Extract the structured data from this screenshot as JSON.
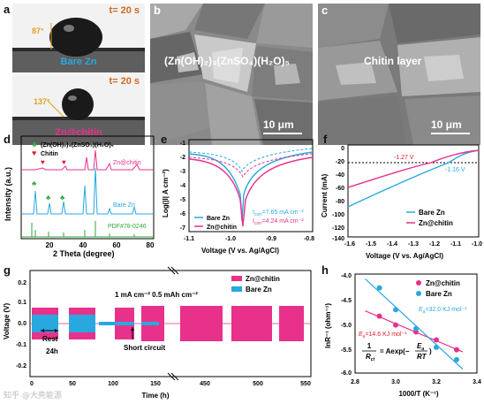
{
  "panels": {
    "a": {
      "label": "a",
      "top": {
        "time": "t= 20 s",
        "angle": "87°",
        "name": "Bare Zn"
      },
      "bottom": {
        "time": "t= 20 s",
        "angle": "137°",
        "name": "Zn@chitin"
      }
    },
    "b": {
      "label": "b",
      "overlay": "(Zn(OH)₂)₃(ZnSO₄)(H₂O)₅",
      "scale": "10 μm"
    },
    "c": {
      "label": "c",
      "overlay": "Chitin layer",
      "scale": "10 μm"
    },
    "d": {
      "label": "d",
      "legend_club": "(Zn(OH)₂)₃(ZnSO₄)(H₂O)₅",
      "legend_heart": "Chitin",
      "trace1": "Zn@chitin",
      "trace2": "Bare Zn",
      "trace3": "PDF#78-0246",
      "xlabel": "2 Theta (degree)",
      "ylabel": "Intensity (a.u.)",
      "xticks": [
        "20",
        "40",
        "60",
        "80"
      ]
    },
    "e": {
      "label": "e",
      "ylabel": "Log(|I| A cm⁻²)",
      "xlabel": "Voltage (V vs. Ag/AgCl)",
      "yticks": [
        "-1",
        "-2",
        "-3",
        "-4",
        "-5",
        "-6",
        "-7"
      ],
      "xticks": [
        "-1.1",
        "-1.0",
        "-0.9",
        "-0.8"
      ],
      "icorr1": "I",
      "icorr1_sub": "corr",
      "icorr1_val": "=7.65 mA cm⁻²",
      "icorr2": "I",
      "icorr2_sub": "corr",
      "icorr2_val": "=4.24 mA cm⁻²",
      "legend": [
        "Bare Zn",
        "Zn@chitin"
      ]
    },
    "f": {
      "label": "f",
      "ylabel": "Current (mA)",
      "xlabel": "Voltage (V vs. Ag/AgCl)",
      "yticks": [
        "0",
        "-20",
        "-40",
        "-60",
        "-80",
        "-100",
        "-120",
        "-140"
      ],
      "xticks": [
        "-1.6",
        "-1.5",
        "-1.4",
        "-1.3",
        "-1.2",
        "-1.1",
        "-1.0"
      ],
      "ann1": "-1.27 V",
      "ann2": "-1.16 V",
      "legend": [
        "Bare Zn",
        "Zn@chitin"
      ]
    },
    "g": {
      "label": "g",
      "ylabel": "Voltage (V)",
      "xlabel": "Time (h)",
      "yticks": [
        "0.2",
        "0.1",
        "0.0",
        "-0.1",
        "-0.2"
      ],
      "xticks": [
        "0",
        "50",
        "100",
        "150",
        "450",
        "500",
        "550"
      ],
      "cond": "1 mA cm⁻²  0.5 mAh cm⁻²",
      "rest1": "Rest",
      "rest2": "24h",
      "short": "Short circuit",
      "legend": [
        "Zn@chitin",
        "Bare Zn"
      ]
    },
    "h": {
      "label": "h",
      "ylabel": "lnR⁻¹ (ohm⁻¹)",
      "xlabel": "1000/T (K⁻¹)",
      "yticks": [
        "-4.0",
        "-4.5",
        "-5.0",
        "-5.5",
        "-6.0"
      ],
      "xticks": [
        "2.8",
        "3.0",
        "3.2",
        "3.4"
      ],
      "ea_bare": "E",
      "ea_bare_sub": "a",
      "ea_bare_val": "=32.0 KJ mol⁻¹",
      "ea_chitin": "E",
      "ea_chitin_sub": "a",
      "ea_chitin_val": "=14.6 KJ mol⁻¹",
      "eq_left": "1",
      "eq_den": "R",
      "eq_den_sub": "ct",
      "eq_right": "= Aexp(−",
      "eq_num2": "E",
      "eq_num2_sub": "a",
      "eq_den2": "RT",
      "eq_close": ")",
      "legend": [
        "Zn@chitin",
        "Bare Zn"
      ]
    }
  },
  "watermark": "知乎 @大壳能源",
  "colors": {
    "blue": "#29a8e0",
    "pink": "#e8318a",
    "green": "#2ea83a",
    "red": "#e0192c"
  },
  "chart_data": [
    {
      "type": "line",
      "panel": "h",
      "series": [
        {
          "name": "Zn@chitin",
          "x": [
            2.92,
            3.0,
            3.1,
            3.2,
            3.3
          ],
          "y": [
            -4.85,
            -5.03,
            -5.17,
            -5.33,
            -5.53
          ]
        },
        {
          "name": "Bare Zn",
          "x": [
            2.92,
            3.0,
            3.1,
            3.2,
            3.3
          ],
          "y": [
            -4.28,
            -4.72,
            -5.1,
            -5.48,
            -5.73
          ]
        }
      ],
      "xlim": [
        2.8,
        3.4
      ],
      "ylim": [
        -6.0,
        -4.0
      ]
    }
  ]
}
